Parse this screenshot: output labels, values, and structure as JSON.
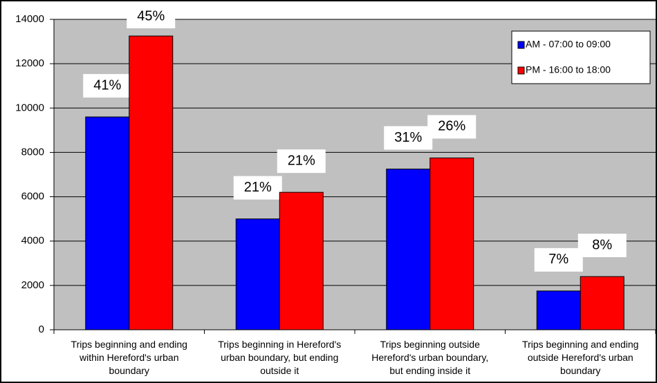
{
  "chart_data": {
    "type": "bar",
    "categories": [
      "Trips beginning and ending\nwithin Hereford's urban\nboundary",
      "Trips beginning in Hereford's\nurban boundary, but ending\noutside it",
      "Trips beginning outside\nHereford's urban boundary,\nbut ending inside it",
      "Trips beginning and ending\noutside Hereford's urban\nboundary"
    ],
    "series": [
      {
        "name": "AM - 07:00 to 09:00",
        "color": "#0000ff",
        "values": [
          9600,
          5000,
          7250,
          1750
        ],
        "value_labels": [
          "41%",
          "21%",
          "31%",
          "7%"
        ]
      },
      {
        "name": "PM - 16:00 to 18:00",
        "color": "#ff0000",
        "values": [
          13250,
          6200,
          7750,
          2400
        ],
        "value_labels": [
          "45%",
          "21%",
          "26%",
          "8%"
        ]
      }
    ],
    "ylim": [
      0,
      14000
    ],
    "yticks": [
      0,
      2000,
      4000,
      6000,
      8000,
      10000,
      12000,
      14000
    ],
    "grid": true,
    "legend": "top-right",
    "plot_background": "#c0c0c0"
  }
}
